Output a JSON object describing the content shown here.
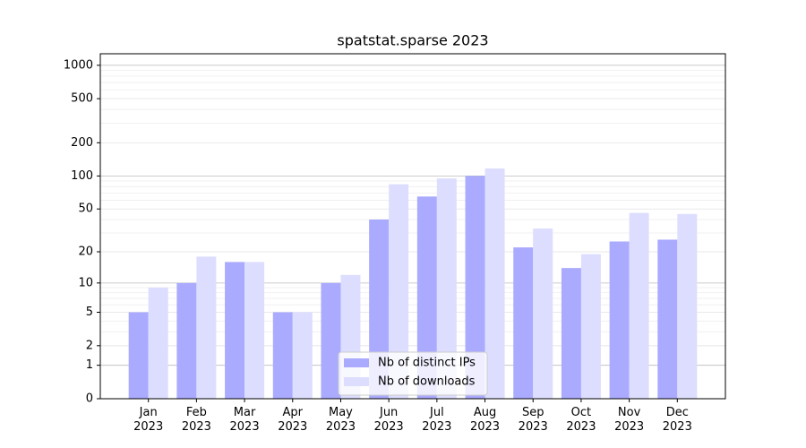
{
  "chart_data": {
    "type": "bar",
    "title": "spatstat.sparse 2023",
    "categories": [
      "Jan\n2023",
      "Feb\n2023",
      "Mar\n2023",
      "Apr\n2023",
      "May\n2023",
      "Jun\n2023",
      "Jul\n2023",
      "Aug\n2023",
      "Sep\n2023",
      "Oct\n2023",
      "Nov\n2023",
      "Dec\n2023"
    ],
    "series": [
      {
        "name": "Nb of distinct IPs",
        "color": "#aaaaff",
        "values": [
          5,
          10,
          16,
          5,
          10,
          40,
          65,
          100,
          22,
          14,
          25,
          26
        ]
      },
      {
        "name": "Nb of downloads",
        "color": "#ddddff",
        "values": [
          9,
          18,
          16,
          5,
          12,
          84,
          95,
          117,
          33,
          19,
          46,
          45
        ]
      }
    ],
    "yscale": "log1p",
    "ylim": [
      0,
      1270
    ],
    "yticks": [
      0,
      1,
      2,
      5,
      10,
      20,
      50,
      100,
      200,
      500,
      1000
    ],
    "grid": true,
    "legend": "lower center"
  }
}
